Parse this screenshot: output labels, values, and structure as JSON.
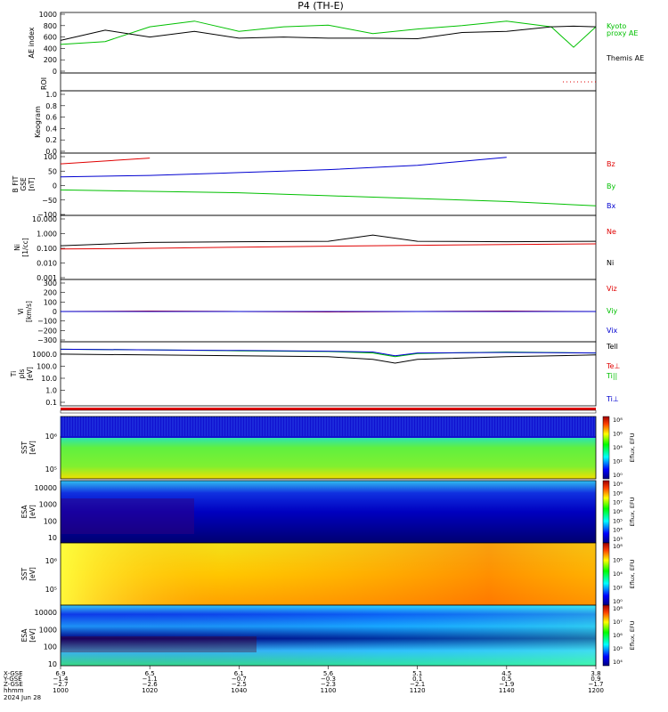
{
  "title": "P4 (TH-E)",
  "colors": {
    "black": "#000000",
    "red": "#e00000",
    "green": "#00d000",
    "blue": "#0000d0"
  },
  "panels": {
    "ae": {
      "ylabel": "AE index",
      "ticks": [
        "1000",
        "800",
        "600",
        "400",
        "200",
        "0"
      ],
      "legend": [
        {
          "text": "Kyoto",
          "color": "#00c000"
        },
        {
          "text": "proxy AE",
          "color": "#00c000"
        },
        {
          "text": "Themis AE",
          "color": "#000000"
        }
      ]
    },
    "roi": {
      "ylabel": "ROI"
    },
    "keogram": {
      "ylabel": "Keogram",
      "ticks": [
        "1.0",
        "0.8",
        "0.6",
        "0.4",
        "0.2",
        "0.0"
      ]
    },
    "bfield": {
      "ylabel_lines": [
        "B FIT",
        "GSE",
        "[nT]"
      ],
      "ticks": [
        "100",
        "50",
        "0",
        "−50",
        "−100"
      ],
      "legend": [
        {
          "text": "Bz",
          "color": "#e00000"
        },
        {
          "text": "By",
          "color": "#00c000"
        },
        {
          "text": "Bx",
          "color": "#0000d0"
        }
      ]
    },
    "density": {
      "ylabel_lines": [
        "Ni",
        "[1/cc]"
      ],
      "ticks": [
        "10.000",
        "1.000",
        "0.100",
        "0.010",
        "0.001"
      ],
      "legend": [
        {
          "text": "Ne",
          "color": "#e00000"
        },
        {
          "text": "Ni",
          "color": "#000000"
        }
      ]
    },
    "velocity": {
      "ylabel_lines": [
        "Vi",
        "[km/s]"
      ],
      "ticks": [
        "300",
        "200",
        "100",
        "0",
        "−100",
        "−200",
        "−300"
      ],
      "legend": [
        {
          "text": "Viz",
          "color": "#e00000"
        },
        {
          "text": "Viy",
          "color": "#00c000"
        },
        {
          "text": "Vix",
          "color": "#0000d0"
        }
      ]
    },
    "temp": {
      "ylabel_lines": [
        "Ti",
        "pIs",
        "[eV]"
      ],
      "ticks": [
        "1000.0",
        "100.0",
        "10.0",
        "1.0",
        "0.1"
      ],
      "legend": [
        {
          "text": "Tell",
          "color": "#000000"
        },
        {
          "text": "Te⊥",
          "color": "#e00000"
        },
        {
          "text": "Ti||",
          "color": "#00c000"
        },
        {
          "text": "Ti⊥",
          "color": "#0000d0"
        }
      ]
    },
    "sst_e": {
      "ylabel_lines": [
        "SST",
        "[eV]"
      ],
      "ticks": [
        "10⁶",
        "10⁵"
      ],
      "cbar_label": "Eflux, EFU",
      "cbar_ticks": [
        "10⁸",
        "10⁶",
        "10⁴",
        "10²",
        "10⁰"
      ]
    },
    "esa_e": {
      "ylabel_lines": [
        "ESA",
        "[eV]"
      ],
      "ticks": [
        "10000",
        "1000",
        "100",
        "10"
      ],
      "cbar_label": "Eflux, EFU",
      "cbar_ticks": [
        "10⁹",
        "10⁸",
        "10⁷",
        "10⁶",
        "10⁵",
        "10⁴",
        "10³"
      ]
    },
    "sst_i": {
      "ylabel_lines": [
        "SST",
        "[eV]"
      ],
      "ticks": [
        "10⁶",
        "10⁵"
      ],
      "cbar_label": "Eflux, EFU",
      "cbar_ticks": [
        "10⁸",
        "10⁶",
        "10⁴",
        "10²",
        "10⁰"
      ]
    },
    "esa_i": {
      "ylabel_lines": [
        "ESA",
        "[eV]"
      ],
      "ticks": [
        "10000",
        "1000",
        "100",
        "10"
      ],
      "cbar_label": "Eflux, EFU",
      "cbar_ticks": [
        "10⁸",
        "10⁷",
        "10⁶",
        "10⁵",
        "10⁴"
      ]
    }
  },
  "xaxis": {
    "row_labels": [
      "X-GSE",
      "Y-GSE",
      "Z-GSE",
      "hhmm",
      "2024 Jun 28"
    ],
    "columns": [
      {
        "x": "6.9",
        "y": "−1.4",
        "z": "−2.7",
        "t": "1000"
      },
      {
        "x": "6.5",
        "y": "−1.1",
        "z": "−2.6",
        "t": "1020"
      },
      {
        "x": "6.1",
        "y": "−0.7",
        "z": "−2.5",
        "t": "1040"
      },
      {
        "x": "5.6",
        "y": "−0.3",
        "z": "−2.3",
        "t": "1100"
      },
      {
        "x": "5.1",
        "y": "0.1",
        "z": "−2.1",
        "t": "1120"
      },
      {
        "x": "4.5",
        "y": "0.5",
        "z": "−1.9",
        "t": "1140"
      },
      {
        "x": "3.8",
        "y": "0.9",
        "z": "−1.7",
        "t": "1200"
      }
    ]
  },
  "chart_data": [
    {
      "type": "line",
      "panel": "AE index",
      "x": [
        1000,
        1010,
        1020,
        1030,
        1040,
        1050,
        1100,
        1110,
        1120,
        1130,
        1140,
        1150,
        1155,
        1200
      ],
      "series": [
        {
          "name": "Kyoto proxy AE",
          "values": [
            470,
            520,
            780,
            880,
            700,
            780,
            810,
            660,
            740,
            800,
            880,
            780,
            420,
            780
          ]
        },
        {
          "name": "Themis AE",
          "values": [
            540,
            720,
            600,
            700,
            580,
            600,
            580,
            580,
            570,
            680,
            700,
            780,
            790,
            780
          ]
        }
      ],
      "ylim": [
        0,
        1000
      ]
    },
    {
      "type": "line",
      "panel": "B FIT GSE",
      "x": [
        1000,
        1020,
        1040,
        1100,
        1120,
        1140,
        1200
      ],
      "series": [
        {
          "name": "Bz",
          "values": [
            75,
            95,
            null,
            null,
            null,
            null,
            null
          ]
        },
        {
          "name": "By",
          "values": [
            30,
            35,
            45,
            55,
            70,
            98,
            null
          ]
        },
        {
          "name": "Bx",
          "values": [
            -15,
            -20,
            -25,
            -35,
            -45,
            -55,
            -70
          ]
        }
      ],
      "ylim": [
        -100,
        100
      ]
    },
    {
      "type": "line",
      "panel": "Ni",
      "x": [
        1000,
        1020,
        1040,
        1100,
        1110,
        1120,
        1140,
        1200
      ],
      "series": [
        {
          "name": "Ne",
          "values": [
            0.09,
            0.1,
            0.12,
            0.14,
            0.15,
            0.16,
            0.18,
            0.2
          ]
        },
        {
          "name": "Ni",
          "values": [
            0.15,
            0.25,
            0.28,
            0.3,
            0.8,
            0.3,
            0.28,
            0.3
          ]
        }
      ],
      "ylim": [
        0.001,
        10
      ]
    },
    {
      "type": "line",
      "panel": "Vi",
      "x": [
        1000,
        1020,
        1040,
        1100,
        1120,
        1140,
        1200
      ],
      "series": [
        {
          "name": "Viz",
          "values": [
            0,
            5,
            0,
            -5,
            0,
            5,
            0
          ]
        },
        {
          "name": "Viy",
          "values": [
            0,
            0,
            0,
            0,
            0,
            0,
            0
          ]
        },
        {
          "name": "Vix",
          "values": [
            0,
            0,
            0,
            0,
            0,
            0,
            0
          ]
        }
      ],
      "ylim": [
        -300,
        300
      ]
    },
    {
      "type": "line",
      "panel": "Ti",
      "x": [
        1000,
        1020,
        1040,
        1100,
        1110,
        1115,
        1120,
        1140,
        1200
      ],
      "series": [
        {
          "name": "Tell",
          "values": [
            800,
            700,
            600,
            500,
            300,
            150,
            300,
            500,
            700
          ]
        },
        {
          "name": "Ti||",
          "values": [
            2000,
            1800,
            1500,
            1300,
            1000,
            500,
            900,
            1200,
            1000
          ]
        },
        {
          "name": "Ti⊥",
          "values": [
            2000,
            1800,
            1600,
            1400,
            1200,
            600,
            1000,
            1100,
            1000
          ]
        }
      ],
      "ylim": [
        0.1,
        3000
      ]
    }
  ]
}
